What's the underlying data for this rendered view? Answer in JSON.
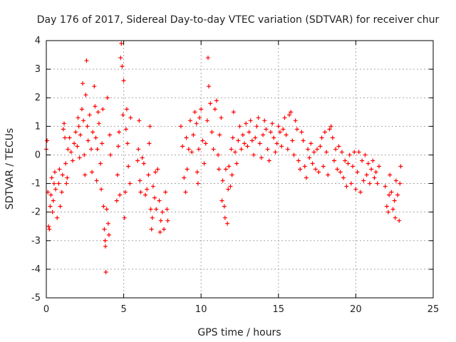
{
  "chart_data": {
    "type": "scatter",
    "title": "Day 176 of 2017, Sidereal Day-to-day VTEC variation (SDTVAR) for receiver chur",
    "xlabel": "GPS time / hours",
    "ylabel": "SDTVAR / TECUs",
    "xlim": [
      0,
      25
    ],
    "ylim": [
      -5,
      4
    ],
    "xticks": [
      "0",
      "5",
      "10",
      "15",
      "20",
      "25"
    ],
    "yticks": [
      "-5",
      "-4",
      "-3",
      "-2",
      "-1",
      "0",
      "1",
      "2",
      "3",
      "4"
    ],
    "grid": true,
    "marker": "+",
    "color": "#ff0000",
    "series": [
      {
        "name": "SDTVAR",
        "points": [
          [
            0.0,
            0.2
          ],
          [
            0.05,
            0.5
          ],
          [
            0.1,
            -1.3
          ],
          [
            0.15,
            -2.5
          ],
          [
            0.2,
            -2.6
          ],
          [
            0.25,
            -1.8
          ],
          [
            0.3,
            -1.4
          ],
          [
            0.35,
            -0.8
          ],
          [
            0.4,
            -2.0
          ],
          [
            0.45,
            -1.6
          ],
          [
            0.5,
            -1.0
          ],
          [
            0.55,
            -0.6
          ],
          [
            0.6,
            -1.2
          ],
          [
            0.7,
            -2.2
          ],
          [
            0.8,
            -1.0
          ],
          [
            0.85,
            -0.5
          ],
          [
            0.9,
            -1.8
          ],
          [
            1.0,
            -1.3
          ],
          [
            1.05,
            -0.7
          ],
          [
            1.1,
            0.9
          ],
          [
            1.15,
            1.1
          ],
          [
            1.2,
            0.6
          ],
          [
            1.25,
            -0.3
          ],
          [
            1.3,
            -1.0
          ],
          [
            1.35,
            -0.8
          ],
          [
            1.4,
            0.2
          ],
          [
            1.5,
            0.6
          ],
          [
            1.6,
            0.1
          ],
          [
            1.7,
            -0.2
          ],
          [
            1.8,
            0.4
          ],
          [
            1.9,
            0.8
          ],
          [
            2.0,
            0.3
          ],
          [
            2.05,
            1.3
          ],
          [
            2.1,
            1.0
          ],
          [
            2.15,
            -0.1
          ],
          [
            2.2,
            0.7
          ],
          [
            2.3,
            1.6
          ],
          [
            2.35,
            2.5
          ],
          [
            2.4,
            1.2
          ],
          [
            2.45,
            0.0
          ],
          [
            2.5,
            -0.7
          ],
          [
            2.55,
            2.1
          ],
          [
            2.6,
            3.3
          ],
          [
            2.65,
            1.0
          ],
          [
            2.7,
            0.5
          ],
          [
            2.8,
            1.4
          ],
          [
            2.9,
            0.2
          ],
          [
            2.95,
            -0.6
          ],
          [
            3.0,
            0.8
          ],
          [
            3.1,
            2.4
          ],
          [
            3.15,
            1.7
          ],
          [
            3.2,
            0.6
          ],
          [
            3.25,
            -0.9
          ],
          [
            3.3,
            0.2
          ],
          [
            3.35,
            1.5
          ],
          [
            3.4,
            1.1
          ],
          [
            3.5,
            -0.3
          ],
          [
            3.55,
            -1.2
          ],
          [
            3.6,
            0.4
          ],
          [
            3.65,
            1.6
          ],
          [
            3.7,
            -1.8
          ],
          [
            3.75,
            -2.6
          ],
          [
            3.8,
            -3.0
          ],
          [
            3.82,
            -3.2
          ],
          [
            3.85,
            -4.1
          ],
          [
            3.9,
            -1.9
          ],
          [
            3.95,
            2.0
          ],
          [
            4.0,
            -2.4
          ],
          [
            4.05,
            -2.8
          ],
          [
            4.1,
            0.7
          ],
          [
            4.15,
            0.0
          ],
          [
            4.55,
            -1.6
          ],
          [
            4.6,
            -0.7
          ],
          [
            4.65,
            0.3
          ],
          [
            4.7,
            0.8
          ],
          [
            4.75,
            -1.4
          ],
          [
            4.8,
            3.4
          ],
          [
            4.85,
            3.9
          ],
          [
            4.9,
            3.1
          ],
          [
            4.95,
            1.4
          ],
          [
            5.0,
            2.6
          ],
          [
            5.05,
            -2.2
          ],
          [
            5.1,
            -1.3
          ],
          [
            5.15,
            0.9
          ],
          [
            5.2,
            1.6
          ],
          [
            5.25,
            0.4
          ],
          [
            5.3,
            -0.4
          ],
          [
            5.4,
            -1.0
          ],
          [
            5.45,
            1.3
          ],
          [
            5.9,
            -0.2
          ],
          [
            5.95,
            0.2
          ],
          [
            6.0,
            1.2
          ],
          [
            6.05,
            -0.9
          ],
          [
            6.1,
            -1.3
          ],
          [
            6.2,
            -0.1
          ],
          [
            6.3,
            -0.3
          ],
          [
            6.4,
            -1.4
          ],
          [
            6.5,
            -1.2
          ],
          [
            6.6,
            -0.7
          ],
          [
            6.65,
            0.4
          ],
          [
            6.7,
            1.0
          ],
          [
            6.75,
            -1.9
          ],
          [
            6.8,
            -2.6
          ],
          [
            6.85,
            -2.2
          ],
          [
            6.9,
            -1.1
          ],
          [
            7.0,
            -1.5
          ],
          [
            7.05,
            -0.6
          ],
          [
            7.1,
            -1.9
          ],
          [
            7.2,
            -0.5
          ],
          [
            7.3,
            -1.6
          ],
          [
            7.35,
            -2.7
          ],
          [
            7.4,
            -2.3
          ],
          [
            7.5,
            -2.0
          ],
          [
            7.6,
            -2.6
          ],
          [
            7.7,
            -1.3
          ],
          [
            7.8,
            -1.9
          ],
          [
            7.85,
            -2.3
          ],
          [
            8.7,
            1.0
          ],
          [
            8.8,
            0.3
          ],
          [
            8.9,
            -0.8
          ],
          [
            9.0,
            -1.3
          ],
          [
            9.05,
            0.6
          ],
          [
            9.1,
            -0.5
          ],
          [
            9.2,
            0.2
          ],
          [
            9.3,
            1.2
          ],
          [
            9.4,
            0.1
          ],
          [
            9.5,
            0.7
          ],
          [
            9.6,
            1.5
          ],
          [
            9.7,
            1.1
          ],
          [
            9.75,
            -0.6
          ],
          [
            9.8,
            -1.0
          ],
          [
            9.85,
            0.2
          ],
          [
            9.9,
            1.3
          ],
          [
            10.0,
            1.6
          ],
          [
            10.1,
            0.5
          ],
          [
            10.2,
            -0.3
          ],
          [
            10.3,
            0.4
          ],
          [
            10.4,
            1.2
          ],
          [
            10.45,
            3.4
          ],
          [
            10.5,
            2.4
          ],
          [
            10.6,
            1.8
          ],
          [
            10.7,
            0.8
          ],
          [
            10.8,
            0.2
          ],
          [
            10.9,
            1.6
          ],
          [
            11.0,
            1.9
          ],
          [
            11.1,
            0.0
          ],
          [
            11.15,
            -0.5
          ],
          [
            11.2,
            0.7
          ],
          [
            11.3,
            1.3
          ],
          [
            11.35,
            -1.6
          ],
          [
            11.4,
            -0.9
          ],
          [
            11.5,
            -1.8
          ],
          [
            11.55,
            -2.2
          ],
          [
            11.6,
            -0.5
          ],
          [
            11.7,
            -2.4
          ],
          [
            11.75,
            -1.2
          ],
          [
            11.8,
            -0.4
          ],
          [
            11.9,
            -1.1
          ],
          [
            11.95,
            0.2
          ],
          [
            12.0,
            -0.7
          ],
          [
            12.05,
            0.6
          ],
          [
            12.1,
            1.5
          ],
          [
            12.2,
            0.1
          ],
          [
            12.3,
            -0.3
          ],
          [
            12.4,
            0.5
          ],
          [
            12.5,
            1.0
          ],
          [
            12.6,
            0.2
          ],
          [
            12.7,
            0.7
          ],
          [
            12.8,
            0.4
          ],
          [
            12.9,
            1.1
          ],
          [
            13.0,
            0.3
          ],
          [
            13.1,
            0.8
          ],
          [
            13.2,
            1.2
          ],
          [
            13.3,
            0.5
          ],
          [
            13.4,
            0.0
          ],
          [
            13.5,
            0.6
          ],
          [
            13.6,
            1.0
          ],
          [
            13.7,
            1.3
          ],
          [
            13.8,
            0.4
          ],
          [
            13.9,
            -0.1
          ],
          [
            14.0,
            0.7
          ],
          [
            14.1,
            1.2
          ],
          [
            14.2,
            0.9
          ],
          [
            14.3,
            0.2
          ],
          [
            14.4,
            -0.2
          ],
          [
            14.5,
            0.8
          ],
          [
            14.6,
            1.1
          ],
          [
            14.7,
            0.6
          ],
          [
            14.8,
            0.1
          ],
          [
            14.9,
            0.4
          ],
          [
            15.0,
            1.0
          ],
          [
            15.1,
            0.8
          ],
          [
            15.2,
            0.3
          ],
          [
            15.3,
            0.9
          ],
          [
            15.4,
            1.3
          ],
          [
            15.5,
            0.7
          ],
          [
            15.6,
            0.2
          ],
          [
            15.7,
            1.4
          ],
          [
            15.8,
            1.5
          ],
          [
            15.9,
            0.5
          ],
          [
            16.0,
            0.0
          ],
          [
            16.1,
            1.2
          ],
          [
            16.2,
            0.9
          ],
          [
            16.3,
            -0.2
          ],
          [
            16.4,
            -0.5
          ],
          [
            16.5,
            0.8
          ],
          [
            16.6,
            0.5
          ],
          [
            16.7,
            -0.4
          ],
          [
            16.8,
            -0.8
          ],
          [
            16.9,
            0.2
          ],
          [
            17.0,
            -0.1
          ],
          [
            17.1,
            0.4
          ],
          [
            17.2,
            -0.3
          ],
          [
            17.3,
            0.1
          ],
          [
            17.4,
            -0.5
          ],
          [
            17.5,
            0.2
          ],
          [
            17.6,
            -0.6
          ],
          [
            17.7,
            0.3
          ],
          [
            17.8,
            0.6
          ],
          [
            17.9,
            -0.4
          ],
          [
            18.0,
            0.8
          ],
          [
            18.1,
            0.1
          ],
          [
            18.2,
            -0.7
          ],
          [
            18.3,
            0.9
          ],
          [
            18.4,
            1.0
          ],
          [
            18.5,
            0.6
          ],
          [
            18.6,
            -0.2
          ],
          [
            18.7,
            0.2
          ],
          [
            18.8,
            -0.5
          ],
          [
            18.9,
            0.3
          ],
          [
            19.0,
            -0.6
          ],
          [
            19.1,
            0.1
          ],
          [
            19.2,
            -0.8
          ],
          [
            19.3,
            -0.2
          ],
          [
            19.4,
            -1.1
          ],
          [
            19.5,
            -0.3
          ],
          [
            19.6,
            0.0
          ],
          [
            19.7,
            -1.0
          ],
          [
            19.8,
            -0.4
          ],
          [
            19.9,
            0.1
          ],
          [
            20.0,
            -1.2
          ],
          [
            20.1,
            -0.6
          ],
          [
            20.2,
            0.1
          ],
          [
            20.3,
            -1.3
          ],
          [
            20.4,
            -0.2
          ],
          [
            20.5,
            -0.9
          ],
          [
            20.6,
            0.0
          ],
          [
            20.7,
            -0.7
          ],
          [
            20.8,
            -0.3
          ],
          [
            20.9,
            -1.0
          ],
          [
            21.0,
            -0.5
          ],
          [
            21.1,
            -0.2
          ],
          [
            21.2,
            -0.8
          ],
          [
            21.3,
            -0.6
          ],
          [
            21.4,
            -1.0
          ],
          [
            21.5,
            -0.4
          ],
          [
            21.9,
            -1.1
          ],
          [
            22.0,
            -1.8
          ],
          [
            22.1,
            -2.0
          ],
          [
            22.15,
            -1.4
          ],
          [
            22.2,
            -0.7
          ],
          [
            22.3,
            -1.3
          ],
          [
            22.4,
            -1.9
          ],
          [
            22.5,
            -1.6
          ],
          [
            22.55,
            -2.2
          ],
          [
            22.6,
            -0.9
          ],
          [
            22.7,
            -1.4
          ],
          [
            22.8,
            -2.3
          ],
          [
            22.85,
            -1.0
          ],
          [
            22.9,
            -0.4
          ]
        ]
      }
    ]
  }
}
